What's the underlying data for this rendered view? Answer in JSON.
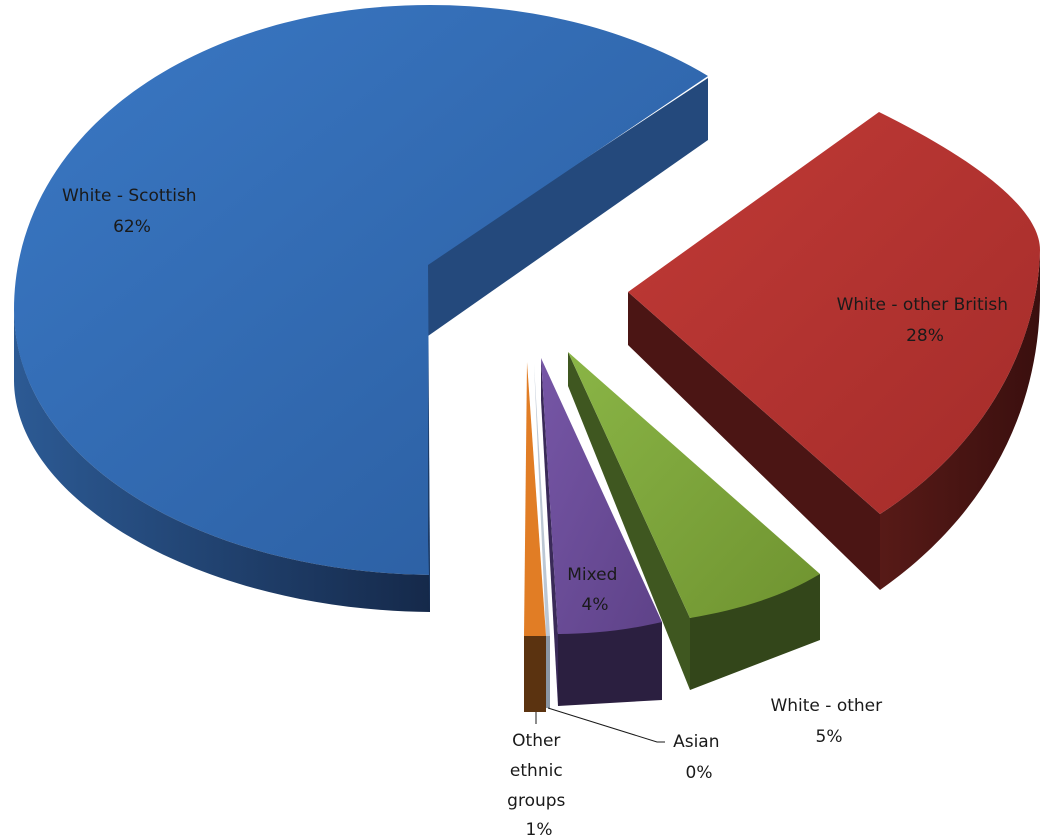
{
  "chart_data": {
    "type": "pie",
    "style": "3d-exploded",
    "title": "",
    "slices": [
      {
        "label": "White - Scottish",
        "value": 62,
        "display": "62%",
        "color": "#3169b1"
      },
      {
        "label": "White - other British",
        "value": 28,
        "display": "28%",
        "color": "#b83230"
      },
      {
        "label": "White - other",
        "value": 5,
        "display": "5%",
        "color": "#7fa63b"
      },
      {
        "label": "Mixed",
        "value": 4,
        "display": "4%",
        "color": "#6a4c98"
      },
      {
        "label": "Asian",
        "value": 0,
        "display": "0%",
        "color": "#3b8fb0"
      },
      {
        "label": "Other ethnic groups",
        "value": 1,
        "display": "1%",
        "color": "#e17d25"
      }
    ],
    "labels": [
      {
        "lines": [
          "White - Scottish",
          "62%"
        ]
      },
      {
        "lines": [
          "White - other British",
          "28%"
        ]
      },
      {
        "lines": [
          "White - other",
          "5%"
        ]
      },
      {
        "lines": [
          "Mixed",
          "4%"
        ]
      },
      {
        "lines": [
          "Asian",
          "0%"
        ]
      },
      {
        "lines": [
          "Other",
          "ethnic",
          "groups",
          "1%"
        ]
      }
    ]
  }
}
